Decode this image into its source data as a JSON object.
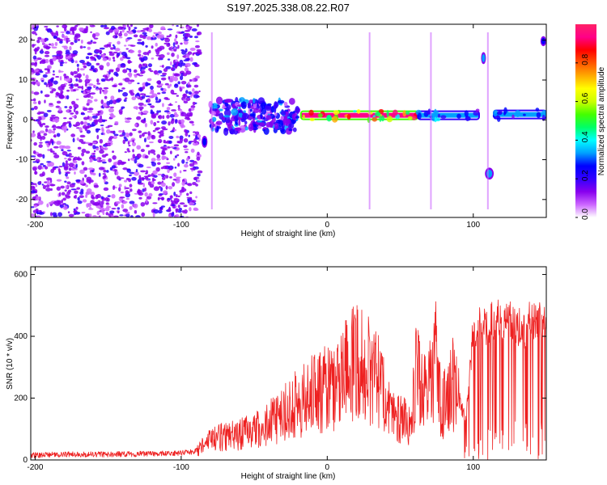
{
  "title": "S197.2025.338.08.22.R07",
  "colors": {
    "series": "#ee2020",
    "frame": "#000000",
    "colormap": [
      "#ffffff",
      "#cc66ff",
      "#8800ee",
      "#3300ff",
      "#0000ff",
      "#00a0ff",
      "#00ffff",
      "#00ff66",
      "#44ff00",
      "#ccff00",
      "#ffff00",
      "#ffaa00",
      "#ff5500",
      "#ff0000",
      "#ff0088",
      "#ff2266"
    ]
  },
  "chart_data": [
    {
      "type": "heatmap",
      "name": "spectrogram",
      "xlabel": "Height of straight line (km)",
      "ylabel": "Frequency (Hz)",
      "xlim": [
        -203,
        150
      ],
      "ylim": [
        -24.5,
        24
      ],
      "xticks": [
        -200,
        -100,
        0,
        100
      ],
      "yticks": [
        20,
        10,
        0,
        -10,
        -20
      ],
      "colorbar": {
        "label": "Normalized spectral amplitude",
        "range": [
          0,
          1
        ],
        "ticks": [
          "0.0",
          "0.2",
          "0.4",
          "0.6",
          "0.8"
        ],
        "tick_values": [
          0.0,
          0.2,
          0.4,
          0.6,
          0.8
        ]
      },
      "features": [
        {
          "label": "broadband noise",
          "x_range": [
            -203,
            -87
          ],
          "y_range": [
            -24.5,
            24
          ],
          "amplitude": 0.08
        },
        {
          "label": "onset",
          "x_range": [
            -86,
            -82
          ],
          "y_range": [
            -7,
            -4
          ],
          "amplitude": 0.25
        },
        {
          "label": "noisy band",
          "x_range": [
            -80,
            -20
          ],
          "y_range": [
            -3,
            5
          ],
          "amplitude": 0.18
        },
        {
          "label": "carrier",
          "x_range": [
            -18,
            62
          ],
          "y_range": [
            0.5,
            1.8
          ],
          "amplitude": 0.9
        },
        {
          "label": "carrier",
          "x_range": [
            62,
            104
          ],
          "y_range": [
            0.5,
            1.8
          ],
          "amplitude": 0.35
        },
        {
          "label": "carrier",
          "x_range": [
            114,
            150
          ],
          "y_range": [
            0.5,
            2.2
          ],
          "amplitude": 0.32
        },
        {
          "label": "spur",
          "x_range": [
            106,
            108
          ],
          "y_range": [
            14,
            17
          ],
          "amplitude": 0.3
        },
        {
          "label": "spur",
          "x_range": [
            108,
            114
          ],
          "y_range": [
            -15,
            -12
          ],
          "amplitude": 0.3
        },
        {
          "label": "spur",
          "x_range": [
            146,
            150
          ],
          "y_range": [
            18.5,
            21
          ],
          "amplitude": 0.25
        }
      ]
    },
    {
      "type": "line",
      "name": "snr",
      "xlabel": "Height of straight line (km)",
      "ylabel": "SNR (10 * v/v)",
      "xlim": [
        -203,
        150
      ],
      "ylim": [
        0,
        625
      ],
      "xticks": [
        -200,
        -100,
        0,
        100
      ],
      "yticks": [
        0,
        200,
        400,
        600
      ],
      "series": [
        {
          "name": "SNR",
          "x": [
            -203,
            -180,
            -150,
            -120,
            -100,
            -90,
            -85,
            -80,
            -75,
            -70,
            -60,
            -50,
            -40,
            -30,
            -20,
            -10,
            0,
            5,
            10,
            15,
            20,
            25,
            30,
            35,
            40,
            45,
            50,
            55,
            58,
            60,
            65,
            70,
            75,
            78,
            80,
            85,
            90,
            95,
            100,
            105,
            110,
            115,
            120,
            125,
            130,
            135,
            140,
            145,
            150
          ],
          "values": [
            15,
            18,
            18,
            20,
            22,
            28,
            50,
            70,
            80,
            80,
            90,
            100,
            130,
            160,
            200,
            230,
            250,
            270,
            300,
            320,
            340,
            340,
            310,
            270,
            210,
            160,
            150,
            130,
            130,
            290,
            270,
            280,
            380,
            150,
            200,
            280,
            200,
            130,
            420,
            430,
            430,
            460,
            440,
            450,
            430,
            420,
            460,
            450,
            430
          ]
        }
      ]
    }
  ]
}
